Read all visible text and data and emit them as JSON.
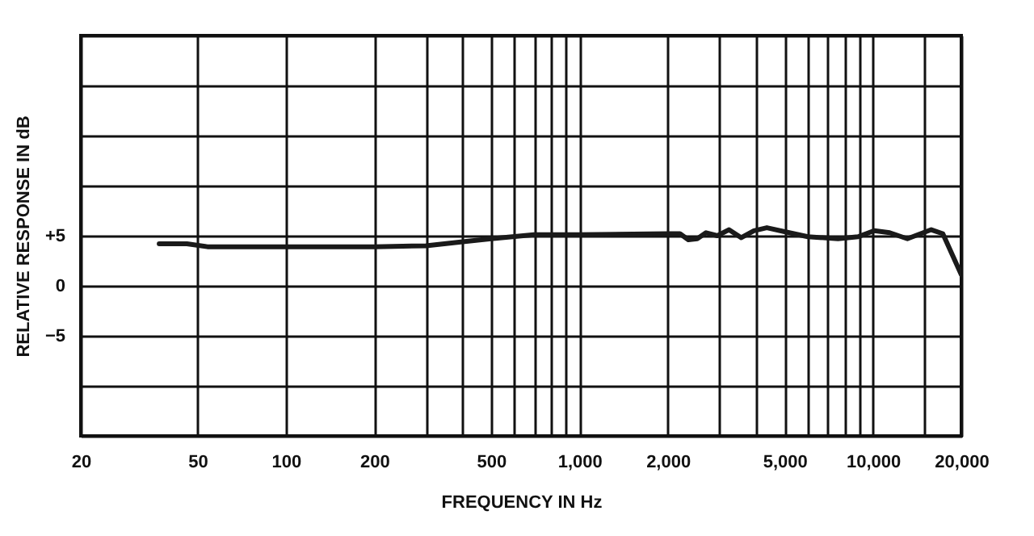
{
  "chart_data": {
    "type": "line",
    "xlabel": "FREQUENCY IN Hz",
    "ylabel": "RELATIVE RESPONSE IN dB",
    "log": "x",
    "grid": true,
    "xlim": [
      20,
      20000
    ],
    "ylim": [
      -15,
      25
    ],
    "xticks": [
      {
        "value": 20,
        "label": "20"
      },
      {
        "value": 50,
        "label": "50"
      },
      {
        "value": 100,
        "label": "100"
      },
      {
        "value": 200,
        "label": "200"
      },
      {
        "value": 300,
        "label": null
      },
      {
        "value": 400,
        "label": null
      },
      {
        "value": 500,
        "label": "500"
      },
      {
        "value": 600,
        "label": null
      },
      {
        "value": 700,
        "label": null
      },
      {
        "value": 800,
        "label": null
      },
      {
        "value": 900,
        "label": null
      },
      {
        "value": 1000,
        "label": "1,000"
      },
      {
        "value": 2000,
        "label": "2,000"
      },
      {
        "value": 3000,
        "label": null
      },
      {
        "value": 4000,
        "label": null
      },
      {
        "value": 5000,
        "label": "5,000"
      },
      {
        "value": 6000,
        "label": null
      },
      {
        "value": 7000,
        "label": null
      },
      {
        "value": 8000,
        "label": null
      },
      {
        "value": 9000,
        "label": null
      },
      {
        "value": 10000,
        "label": "10,000"
      },
      {
        "value": 15000,
        "label": null
      },
      {
        "value": 20000,
        "label": "20,000"
      }
    ],
    "yticks": [
      {
        "value": -15,
        "label": null
      },
      {
        "value": -10,
        "label": null
      },
      {
        "value": -5,
        "label": "−5"
      },
      {
        "value": 0,
        "label": "0"
      },
      {
        "value": 5,
        "label": "+5"
      },
      {
        "value": 10,
        "label": null
      },
      {
        "value": 15,
        "label": null
      },
      {
        "value": 20,
        "label": null
      },
      {
        "value": 25,
        "label": null
      }
    ],
    "x": [
      37,
      46,
      54,
      100,
      200,
      300,
      400,
      500,
      700,
      1000,
      2000,
      2200,
      2350,
      2520,
      2700,
      2950,
      3230,
      3560,
      3930,
      4350,
      5000,
      6000,
      7600,
      8900,
      10100,
      11400,
      13100,
      15800,
      17300,
      18700,
      20000
    ],
    "series": [
      {
        "color": "#1a1a1a",
        "values": [
          4.2,
          4.2,
          3.9,
          3.9,
          3.9,
          4.0,
          4.4,
          4.7,
          5.1,
          5.1,
          5.2,
          5.2,
          4.6,
          4.7,
          5.3,
          5.0,
          5.6,
          4.8,
          5.5,
          5.8,
          5.4,
          4.9,
          4.7,
          4.9,
          5.5,
          5.3,
          4.7,
          5.6,
          5.2,
          3.0,
          1.1
        ]
      }
    ]
  }
}
